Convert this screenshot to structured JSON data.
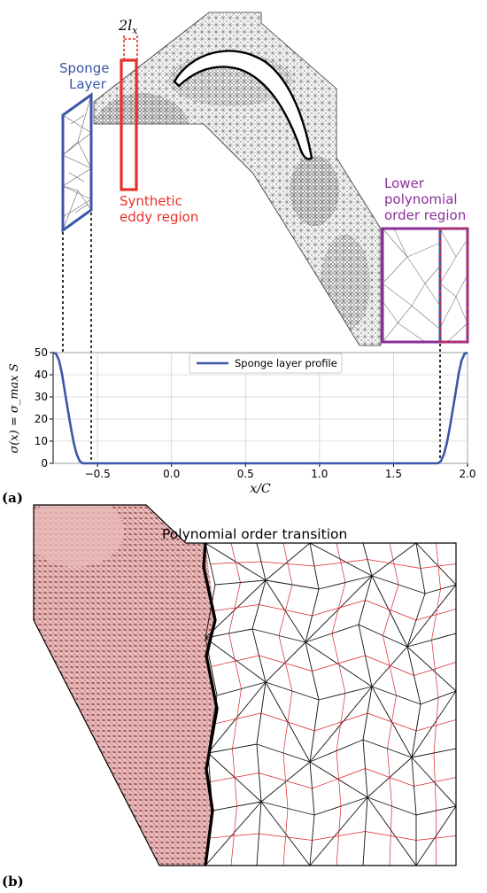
{
  "panel_a": {
    "letter": "(a)",
    "annotations": {
      "sponge_line1": "Sponge",
      "sponge_line2": "Layer",
      "synthetic_line1": "Synthetic",
      "synthetic_line2": "eddy region",
      "lower_line1": "Lower",
      "lower_line2": "polynomial",
      "lower_line3": "order region",
      "width_base": "2l",
      "width_sub": "x"
    },
    "colors": {
      "sponge": "#3a56a8",
      "synthetic": "#e8302a",
      "lower": "#8b2f9a",
      "mesh": "#222222"
    }
  },
  "chart_data": {
    "type": "line",
    "title": "",
    "xlabel": "x/C",
    "ylabel": "σ(x) = σ_max S",
    "xlim": [
      -0.8,
      2.0
    ],
    "ylim": [
      0,
      50
    ],
    "xticks": [
      "−0.5",
      "0.0",
      "0.5",
      "1.0",
      "1.5",
      "2.0"
    ],
    "xtick_values": [
      -0.5,
      0.0,
      0.5,
      1.0,
      1.5,
      2.0
    ],
    "yticks": [
      "0",
      "10",
      "20",
      "30",
      "40",
      "50"
    ],
    "ytick_values": [
      0,
      10,
      20,
      30,
      40,
      50
    ],
    "grid": true,
    "legend_position": "top-center",
    "series": [
      {
        "name": "Sponge layer profile",
        "color": "#3a56a8",
        "x": [
          -0.8,
          -0.78,
          -0.76,
          -0.74,
          -0.72,
          -0.7,
          -0.68,
          -0.66,
          -0.64,
          -0.62,
          -0.6,
          0.0,
          1.0,
          1.8,
          1.82,
          1.84,
          1.86,
          1.88,
          1.9,
          1.92,
          1.94,
          1.96,
          1.98,
          2.0
        ],
        "y": [
          50,
          49.5,
          46.5,
          40.5,
          32,
          24,
          16,
          9,
          4,
          1,
          0,
          0,
          0,
          0,
          1,
          4,
          9,
          16,
          24,
          32,
          40.5,
          46.5,
          49.5,
          50
        ]
      }
    ]
  },
  "panel_b": {
    "letter": "(b)",
    "title": "Polynomial order transition",
    "colors": {
      "high_order": "#d9262a",
      "mesh": "#111111"
    }
  }
}
